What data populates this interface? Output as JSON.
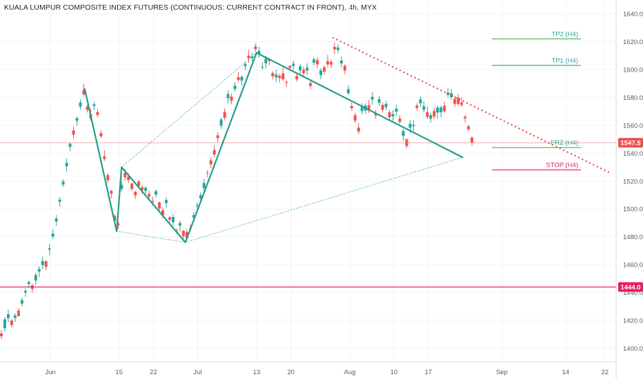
{
  "title": "KUALA LUMPUR COMPOSITE INDEX FUTURES (CONTINUOUS: CURRENT CONTRACT IN FRONT), 4h, MYX",
  "colors": {
    "up": "#26a69a",
    "down": "#ef5350",
    "pattern": "#1e9e8a",
    "red_line": "#e91e63",
    "price_line": "#f08a8a",
    "tp": "#4caf50",
    "axis_text": "#555b66"
  },
  "chart_data": {
    "type": "candlestick",
    "title": "KUALA LUMPUR COMPOSITE INDEX FUTURES (CONTINUOUS: CURRENT CONTRACT IN FRONT), 4h, MYX",
    "y_ticks": [
      1400,
      1420,
      1440,
      1460,
      1480,
      1500,
      1520,
      1540,
      1560,
      1580,
      1600,
      1620,
      1640
    ],
    "x_ticks": [
      {
        "label": "Jun",
        "day": 0
      },
      {
        "label": "15",
        "day": 14
      },
      {
        "label": "22",
        "day": 21
      },
      {
        "label": "Jul",
        "day": 30
      },
      {
        "label": "13",
        "day": 42
      },
      {
        "label": "20",
        "day": 49
      },
      {
        "label": "Aug",
        "day": 61
      },
      {
        "label": "10",
        "day": 70
      },
      {
        "label": "17",
        "day": 77
      },
      {
        "label": "Sep",
        "day": 92
      },
      {
        "label": "14",
        "day": 105
      },
      {
        "label": "22",
        "day": 113
      }
    ],
    "ylim": [
      1388,
      1646
    ],
    "xlim_days": [
      -10,
      115
    ],
    "price_marker": {
      "value": "1547.5",
      "price": 1547.5
    },
    "level_marker": {
      "value": "1444.0",
      "price": 1444.0
    },
    "levels": [
      {
        "label": "TP2 (H4)",
        "price": 1622,
        "color": "#4caf50"
      },
      {
        "label": "TP1 (H4)",
        "price": 1603,
        "color": "#4caf50"
      },
      {
        "label": "PRZ (H4)",
        "price": 1544,
        "color": "#4caf50"
      },
      {
        "label": "STOP (H4)",
        "price": 1528,
        "color": "#e91e63"
      }
    ],
    "pattern_points": [
      {
        "day": 7,
        "price": 1586
      },
      {
        "day": 13.5,
        "price": 1484
      },
      {
        "day": 14.5,
        "price": 1530
      },
      {
        "day": 27.5,
        "price": 1476
      },
      {
        "day": 42,
        "price": 1612
      },
      {
        "day": 84,
        "price": 1537
      }
    ],
    "resistance_line": {
      "start": {
        "day": 57.5,
        "price": 1623
      },
      "end": {
        "day": 114,
        "price": 1526
      }
    },
    "candles": [
      [
        -10.0,
        1410.7,
        1413.1,
        1406.6,
        1408.7
      ],
      [
        -9.3,
        1414.4,
        1422.5,
        1411.9,
        1420.8
      ],
      [
        -8.6,
        1421.6,
        1427.7,
        1418.7,
        1424.5
      ],
      [
        -7.9,
        1419.9,
        1421.2,
        1415.1,
        1416.7
      ],
      [
        -7.2,
        1421.7,
        1425.1,
        1419.0,
        1423.6
      ],
      [
        -6.5,
        1427.1,
        1428.9,
        1423.0,
        1423.1
      ],
      [
        -5.8,
        1432.0,
        1436.4,
        1430.1,
        1434.6
      ],
      [
        -5.1,
        1440.1,
        1443.1,
        1436.9,
        1441.2
      ],
      [
        -4.4,
        1446.2,
        1448.5,
        1443.6,
        1447.6
      ],
      [
        -3.7,
        1445.3,
        1446.4,
        1440.0,
        1442.6
      ],
      [
        -3.0,
        1448.6,
        1454.2,
        1445.3,
        1452.6
      ],
      [
        -2.3,
        1455.1,
        1458.9,
        1451.1,
        1456.9
      ],
      [
        -1.6,
        1459.7,
        1465.8,
        1456.6,
        1462.6
      ],
      [
        -0.9,
        1462.5,
        1463.1,
        1456.0,
        1458.4
      ],
      [
        -0.2,
        1470.8,
        1475.0,
        1466.7,
        1471.7
      ],
      [
        0.5,
        1480.3,
        1485.6,
        1478.3,
        1482.3
      ],
      [
        1.2,
        1491.0,
        1495.7,
        1488.0,
        1493.2
      ],
      [
        1.9,
        1505.2,
        1508.5,
        1501.7,
        1506.6
      ],
      [
        2.6,
        1517.5,
        1521.2,
        1515.7,
        1519.7
      ],
      [
        3.3,
        1530.6,
        1536.1,
        1526.8,
        1533.0
      ],
      [
        4.0,
        1544.5,
        1547.7,
        1541.6,
        1546.7
      ],
      [
        4.7,
        1556.3,
        1559.3,
        1550.4,
        1553.2
      ],
      [
        5.4,
        1563.3,
        1566.2,
        1559.7,
        1565.1
      ],
      [
        6.1,
        1573.4,
        1578.5,
        1571.3,
        1576.4
      ],
      [
        6.8,
        1585.3,
        1589.9,
        1580.7,
        1582.2
      ],
      [
        7.5,
        1573.4,
        1574.7,
        1569.2,
        1571.0
      ],
      [
        8.2,
        1567.9,
        1571.8,
        1563.2,
        1564.9
      ],
      [
        8.9,
        1573.9,
        1576.5,
        1570.8,
        1575.1
      ],
      [
        9.6,
        1569.5,
        1571.7,
        1565.8,
        1567.4
      ],
      [
        10.3,
        1554.3,
        1556.6,
        1550.8,
        1552.1
      ],
      [
        11.0,
        1537.7,
        1542.0,
        1534.4,
        1535.9
      ],
      [
        11.7,
        1524.3,
        1525.7,
        1518.4,
        1520.7
      ],
      [
        12.4,
        1512.9,
        1513.8,
        1507.6,
        1510.9
      ],
      [
        13.1,
        1494.9,
        1496.2,
        1490.6,
        1491.5
      ],
      [
        13.8,
        1489.6,
        1491.6,
        1485.6,
        1488.2
      ],
      [
        14.5,
        1514.3,
        1519.6,
        1512.6,
        1517.3
      ],
      [
        15.2,
        1525.8,
        1528.4,
        1520.4,
        1522.7
      ],
      [
        15.9,
        1523.2,
        1525.6,
        1518.5,
        1520.8
      ],
      [
        16.6,
        1518.2,
        1518.9,
        1512.7,
        1514.3
      ],
      [
        17.3,
        1512.4,
        1512.9,
        1507.2,
        1509.7
      ],
      [
        18.0,
        1519.7,
        1520.8,
        1514.8,
        1516.6
      ],
      [
        18.7,
        1515.6,
        1517.2,
        1510.9,
        1513.6
      ],
      [
        19.4,
        1512.9,
        1516.4,
        1510.7,
        1515.2
      ],
      [
        20.1,
        1510.7,
        1513.0,
        1506.5,
        1508.9
      ],
      [
        20.8,
        1505.6,
        1508.8,
        1502.6,
        1504.7
      ],
      [
        21.5,
        1510.3,
        1514.1,
        1508.3,
        1512.7
      ],
      [
        22.2,
        1504.7,
        1505.3,
        1498.0,
        1500.3
      ],
      [
        22.9,
        1499.0,
        1501.0,
        1493.4,
        1495.5
      ],
      [
        23.6,
        1504.2,
        1508.2,
        1500.9,
        1506.4
      ],
      [
        24.3,
        1494.0,
        1495.3,
        1490.4,
        1492.3
      ],
      [
        25.0,
        1490.5,
        1496.4,
        1487.9,
        1494.2
      ],
      [
        25.7,
        1484.7,
        1486.0,
        1482.5,
        1484.3
      ],
      [
        26.4,
        1488.0,
        1491.8,
        1483.7,
        1489.9
      ],
      [
        27.1,
        1484.3,
        1485.1,
        1478.8,
        1480.5
      ],
      [
        27.8,
        1483.3,
        1485.8,
        1477.3,
        1479.2
      ],
      [
        28.5,
        1486.3,
        1488.7,
        1483.9,
        1485.9
      ],
      [
        29.2,
        1493.8,
        1497.9,
        1491.4,
        1495.6
      ],
      [
        29.9,
        1502.3,
        1504.7,
        1500.4,
        1502.6
      ],
      [
        30.6,
        1507.8,
        1511.7,
        1505.5,
        1509.8
      ],
      [
        31.3,
        1515.0,
        1521.5,
        1513.1,
        1518.6
      ],
      [
        32.0,
        1526.1,
        1527.8,
        1522.8,
        1525.7
      ],
      [
        32.7,
        1534.8,
        1537.0,
        1529.2,
        1532.0
      ],
      [
        33.4,
        1542.3,
        1546.1,
        1536.8,
        1538.9
      ],
      [
        34.1,
        1552.8,
        1555.0,
        1548.0,
        1550.8
      ],
      [
        34.8,
        1559.7,
        1565.6,
        1557.4,
        1564.2
      ],
      [
        35.5,
        1569.6,
        1572.1,
        1563.5,
        1565.4
      ],
      [
        36.2,
        1579.4,
        1585.1,
        1575.9,
        1582.4
      ],
      [
        36.9,
        1580.6,
        1582.9,
        1575.1,
        1577.5
      ],
      [
        37.6,
        1586.0,
        1590.8,
        1584.2,
        1588.4
      ],
      [
        38.3,
        1594.5,
        1598.0,
        1590.9,
        1592.5
      ],
      [
        39.0,
        1592.1,
        1595.8,
        1588.6,
        1594.7
      ],
      [
        39.7,
        1602.4,
        1605.4,
        1599.6,
        1603.9
      ],
      [
        40.4,
        1610.0,
        1614.0,
        1604.9,
        1608.1
      ],
      [
        41.1,
        1608.3,
        1612.1,
        1605.8,
        1609.4
      ],
      [
        41.8,
        1616.5,
        1618.6,
        1612.5,
        1614.6
      ],
      [
        42.5,
        1611.0,
        1616.4,
        1608.6,
        1613.4
      ],
      [
        43.2,
        1601.9,
        1605.2,
        1599.8,
        1601.9
      ],
      [
        43.9,
        1604.5,
        1609.9,
        1600.7,
        1607.9
      ],
      [
        44.6,
        1607.1,
        1608.4,
        1603.1,
        1606.1
      ],
      [
        45.3,
        1597.5,
        1598.7,
        1592.8,
        1595.2
      ],
      [
        46.0,
        1594.3,
        1599.9,
        1590.9,
        1596.4
      ],
      [
        46.7,
        1595.5,
        1597.2,
        1590.7,
        1593.8
      ],
      [
        47.4,
        1597.2,
        1601.4,
        1591.8,
        1593.0
      ],
      [
        48.1,
        1591.1,
        1592.8,
        1587.5,
        1590.5
      ],
      [
        48.8,
        1602.6,
        1603.3,
        1599.0,
        1601.3
      ],
      [
        49.5,
        1602.5,
        1606.5,
        1599.8,
        1604.2
      ],
      [
        50.2,
        1595.4,
        1597.4,
        1591.3,
        1592.9
      ],
      [
        50.9,
        1599.4,
        1604.0,
        1597.0,
        1602.2
      ],
      [
        51.6,
        1599.8,
        1602.1,
        1594.8,
        1597.3
      ],
      [
        52.3,
        1599.2,
        1604.5,
        1596.1,
        1601.3
      ],
      [
        53.0,
        1590.3,
        1591.7,
        1585.9,
        1588.2
      ],
      [
        53.7,
        1604.9,
        1608.7,
        1602.9,
        1607.4
      ],
      [
        54.4,
        1606.7,
        1608.9,
        1601.1,
        1603.7
      ],
      [
        55.1,
        1595.9,
        1601.0,
        1593.2,
        1599.3
      ],
      [
        55.8,
        1601.6,
        1603.1,
        1596.6,
        1598.5
      ],
      [
        56.5,
        1606.0,
        1610.5,
        1601.4,
        1603.7
      ],
      [
        57.2,
        1605.5,
        1607.1,
        1600.9,
        1603.5
      ],
      [
        57.9,
        1616.2,
        1619.1,
        1611.0,
        1614.4
      ],
      [
        58.6,
        1614.0,
        1618.2,
        1611.6,
        1615.8
      ],
      [
        59.3,
        1604.4,
        1609.2,
        1601.3,
        1606.4
      ],
      [
        60.0,
        1602.6,
        1603.8,
        1596.4,
        1599.3
      ],
      [
        60.7,
        1583.1,
        1588.6,
        1581.5,
        1585.9
      ],
      [
        61.4,
        1573.8,
        1576.4,
        1570.6,
        1572.3
      ],
      [
        62.1,
        1567.2,
        1569.2,
        1561.6,
        1563.3
      ],
      [
        62.8,
        1558.3,
        1561.6,
        1553.5,
        1555.5
      ],
      [
        63.5,
        1570.2,
        1575.9,
        1567.9,
        1573.2
      ],
      [
        64.2,
        1570.6,
        1575.9,
        1568.3,
        1574.2
      ],
      [
        64.9,
        1574.5,
        1578.3,
        1568.8,
        1570.5
      ],
      [
        65.6,
        1578.4,
        1583.7,
        1574.6,
        1580.3
      ],
      [
        66.3,
        1568.6,
        1570.9,
        1564.8,
        1567.1
      ],
      [
        67.0,
        1576.1,
        1581.1,
        1573.7,
        1578.8
      ],
      [
        67.7,
        1574.6,
        1576.4,
        1569.0,
        1571.1
      ],
      [
        68.4,
        1573.0,
        1577.6,
        1570.9,
        1575.4
      ],
      [
        69.1,
        1569.4,
        1570.8,
        1563.7,
        1565.8
      ],
      [
        69.8,
        1566.4,
        1570.7,
        1563.2,
        1568.0
      ],
      [
        70.5,
        1569.8,
        1574.8,
        1566.9,
        1571.9
      ],
      [
        71.2,
        1564.8,
        1567.1,
        1561.0,
        1562.5
      ],
      [
        71.9,
        1552.4,
        1557.5,
        1548.9,
        1555.9
      ],
      [
        72.6,
        1549.9,
        1550.8,
        1543.4,
        1545.1
      ],
      [
        73.3,
        1558.3,
        1563.8,
        1554.3,
        1561.1
      ],
      [
        74.0,
        1559.5,
        1563.9,
        1555.8,
        1560.4
      ],
      [
        74.7,
        1574.1,
        1575.7,
        1570.6,
        1572.4
      ],
      [
        75.4,
        1575.8,
        1580.7,
        1573.3,
        1578.6
      ],
      [
        76.1,
        1571.2,
        1577.3,
        1569.1,
        1573.6
      ],
      [
        76.8,
        1569.4,
        1573.4,
        1564.8,
        1566.0
      ],
      [
        77.5,
        1564.6,
        1569.1,
        1561.8,
        1567.3
      ],
      [
        78.2,
        1570.2,
        1572.5,
        1564.3,
        1566.2
      ],
      [
        78.9,
        1569.1,
        1574.1,
        1564.7,
        1572.7
      ],
      [
        79.6,
        1569.3,
        1574.3,
        1565.9,
        1572.8
      ],
      [
        80.3,
        1574.0,
        1577.1,
        1568.9,
        1570.1
      ],
      [
        81.0,
        1581.8,
        1586.6,
        1580.1,
        1583.4
      ],
      [
        81.7,
        1580.2,
        1586.1,
        1578.5,
        1583.0
      ],
      [
        82.4,
        1578.9,
        1581.3,
        1573.0,
        1575.4
      ],
      [
        83.1,
        1579.9,
        1582.4,
        1573.9,
        1575.3
      ],
      [
        83.8,
        1576.3,
        1580.3,
        1573.3,
        1574.6
      ],
      [
        84.5,
        1566.1,
        1567.4,
        1561.8,
        1565.0
      ],
      [
        85.2,
        1559.3,
        1560.1,
        1555.8,
        1557.1
      ],
      [
        85.9,
        1551.1,
        1552.1,
        1545.3,
        1547.5
      ]
    ]
  }
}
